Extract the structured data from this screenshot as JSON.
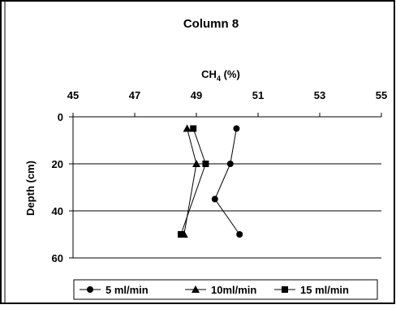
{
  "chart_data": {
    "type": "line",
    "title": "Column 8",
    "xlabel": "CH",
    "xlabel_subscript": "4",
    "xlabel_suffix": " (%)",
    "ylabel": "Depth (cm)",
    "x_ticks": [
      45,
      47,
      49,
      51,
      53,
      55
    ],
    "y_ticks": [
      0,
      20,
      40,
      60
    ],
    "xlim": [
      45,
      55
    ],
    "ylim": [
      0,
      60
    ],
    "y_inverted": true,
    "x_axis_position": "top",
    "grid": "horizontal",
    "legend_position": "bottom",
    "series": [
      {
        "name": "5 ml/min",
        "marker": "circle",
        "points": [
          {
            "x": 50.3,
            "y": 5
          },
          {
            "x": 50.1,
            "y": 20
          },
          {
            "x": 49.6,
            "y": 35
          },
          {
            "x": 50.4,
            "y": 50
          }
        ]
      },
      {
        "name": "10ml/min",
        "marker": "triangle",
        "points": [
          {
            "x": 48.7,
            "y": 5
          },
          {
            "x": 49.0,
            "y": 20
          },
          {
            "x": 48.6,
            "y": 50
          }
        ]
      },
      {
        "name": "15 ml/min",
        "marker": "square",
        "points": [
          {
            "x": 48.9,
            "y": 5
          },
          {
            "x": 49.3,
            "y": 20
          },
          {
            "x": 48.5,
            "y": 50
          }
        ]
      }
    ],
    "colors": {
      "line": "#000000",
      "grid": "#000000",
      "background": "#ffffff"
    }
  }
}
